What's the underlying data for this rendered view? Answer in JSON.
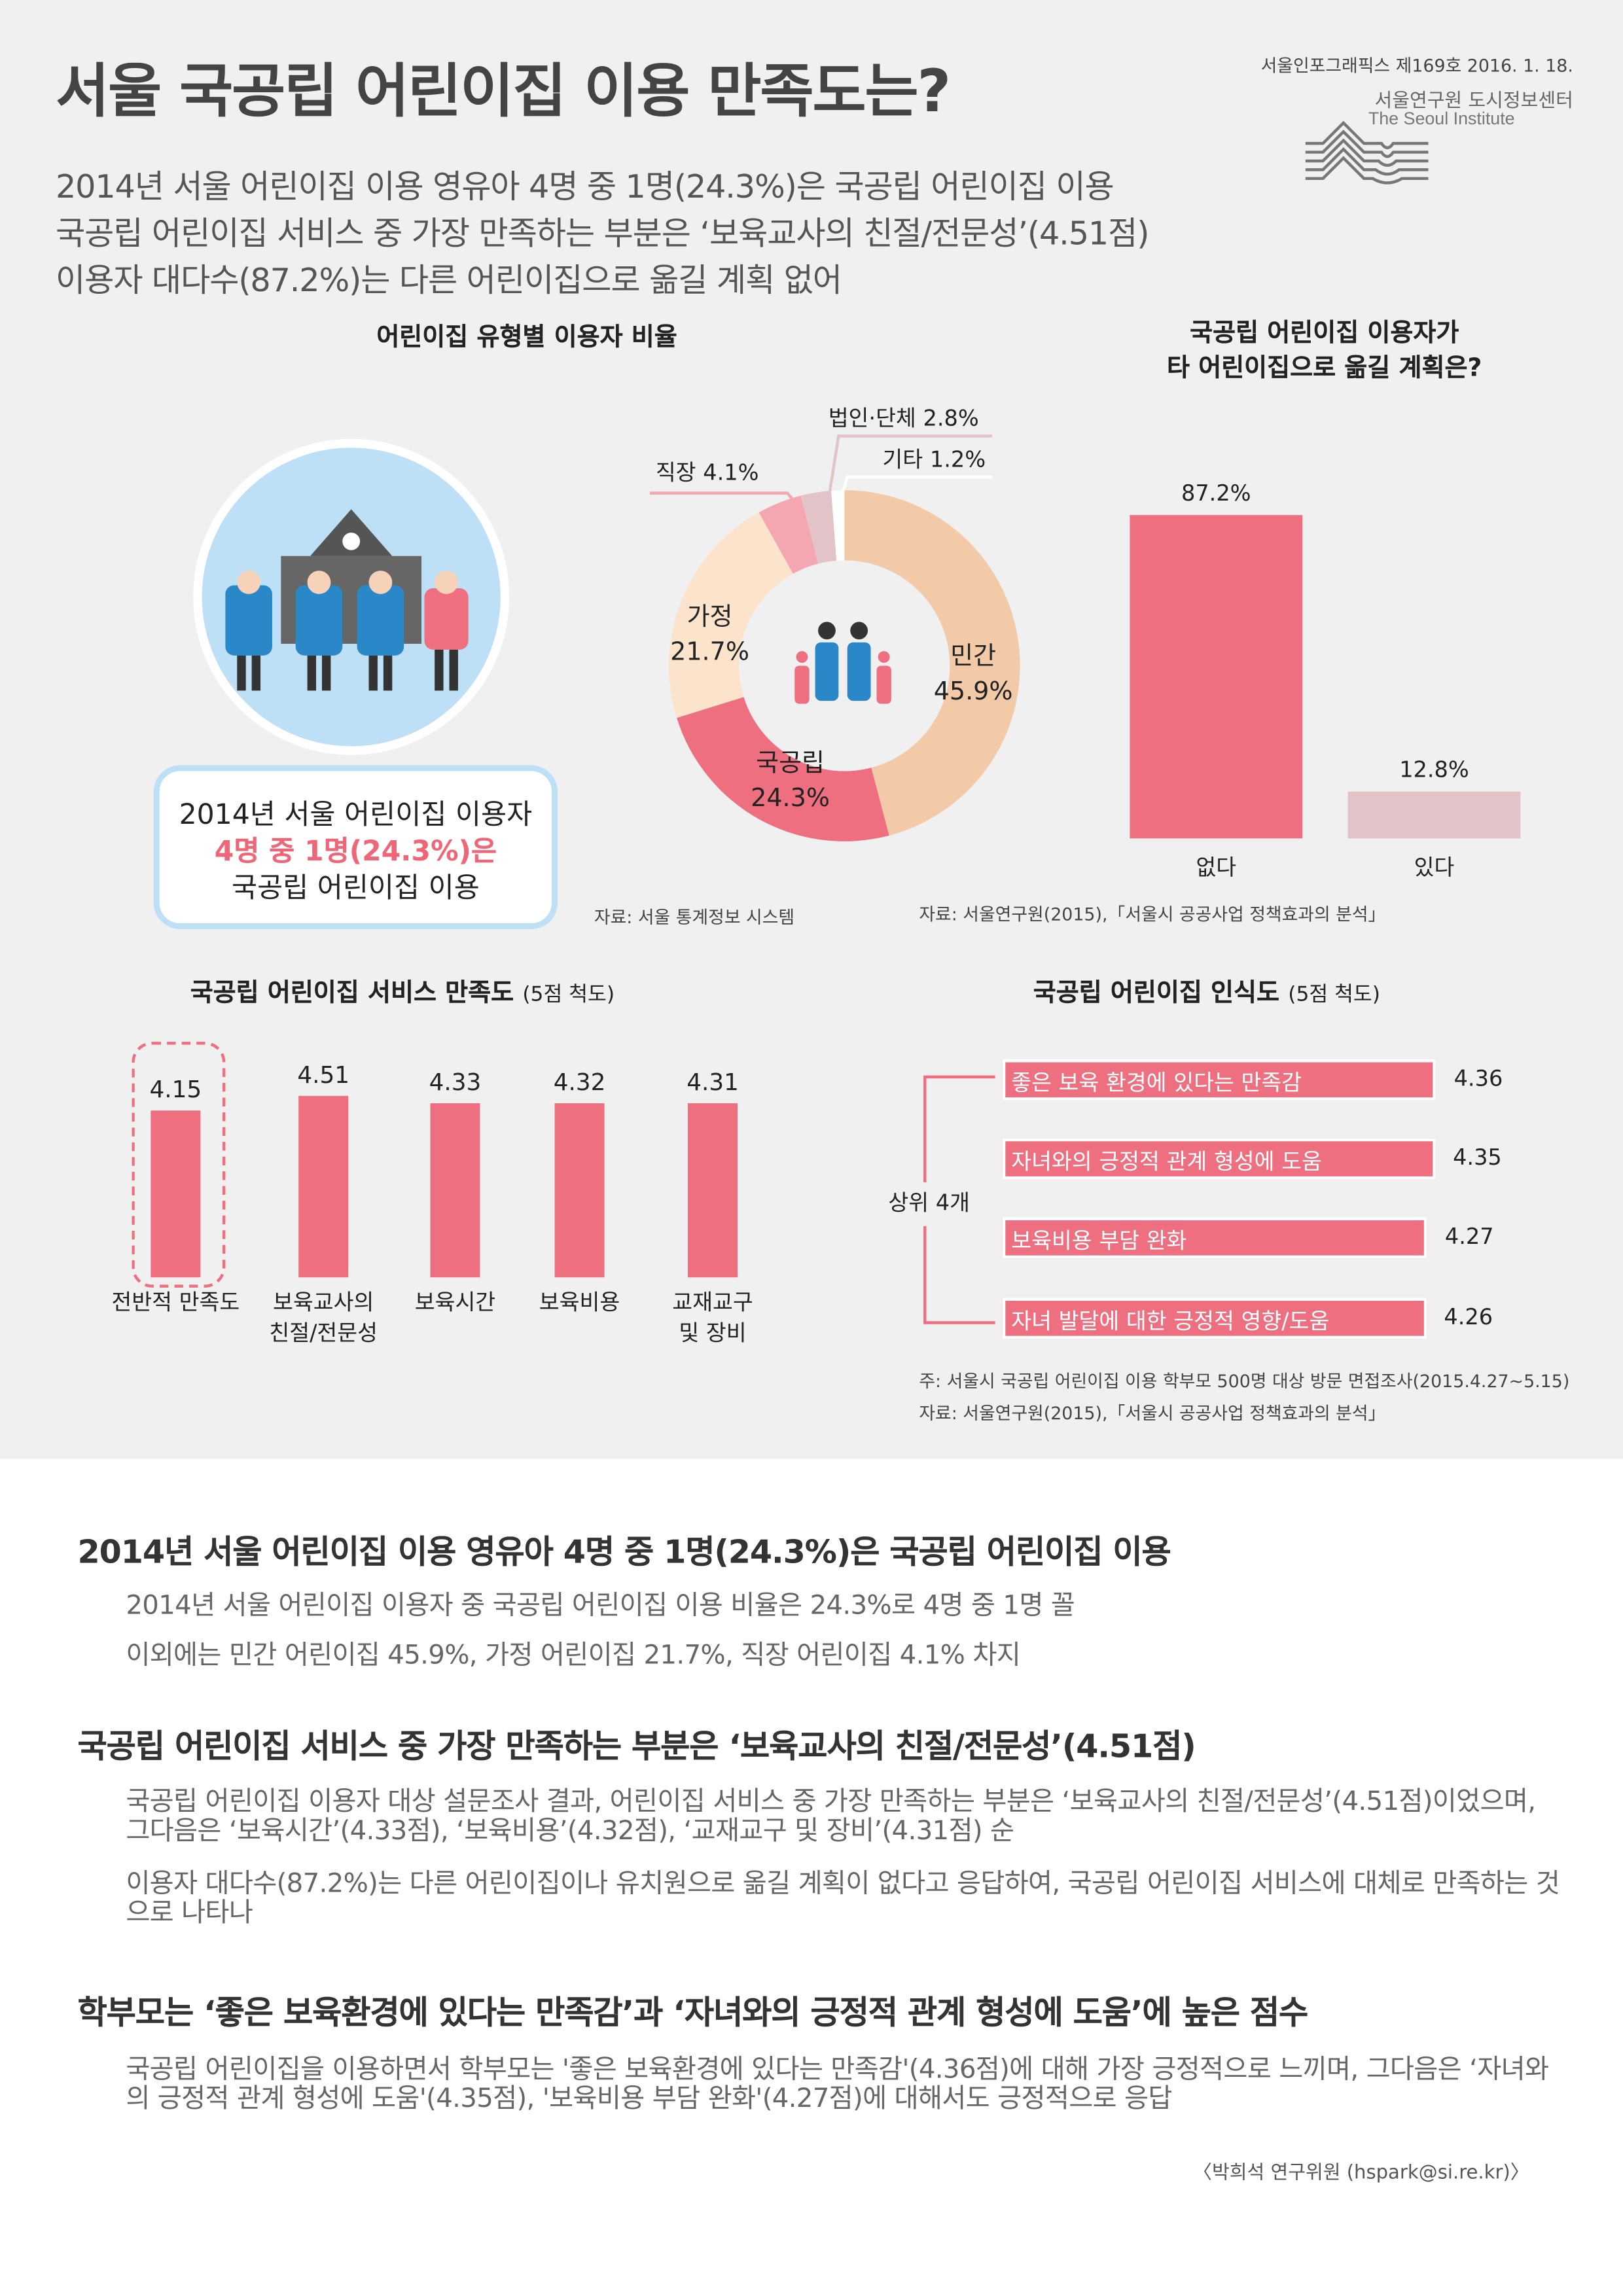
{
  "header": {
    "title": "서울 국공립 어린이집 이용 만족도는?",
    "subtitles": [
      "2014년 서울 어린이집 이용 영유아 4명 중 1명(24.3%)은 국공립 어린이집 이용",
      "국공립 어린이집 서비스 중 가장 만족하는 부분은 ‘보육교사의 친절/전문성’(4.51점)",
      "이용자 대다수(87.2%)는 다른 어린이집으로 옮길 계획 없어"
    ],
    "issue": "서울인포그래픽스 제169호 2016. 1. 18.",
    "org_kr": "서울연구원 도시정보센터",
    "org_en": "The Seoul Institute"
  },
  "callout": {
    "line1": "2014년 서울 어린이집 이용자",
    "line2": "4명 중 1명(24.3%)은",
    "line3": "국공립 어린이집 이용",
    "accent": "#ee6677"
  },
  "chart_data": [
    {
      "type": "pie",
      "title": "어린이집 유형별 이용자 비율",
      "donut": true,
      "slices": [
        {
          "label": "민간",
          "value": 45.9,
          "color": "#f2caa8"
        },
        {
          "label": "국공립",
          "value": 24.3,
          "color": "#ee7080"
        },
        {
          "label": "가정",
          "value": 21.7,
          "color": "#fbe3cc"
        },
        {
          "label": "직장",
          "value": 4.1,
          "color": "#f4a7b0"
        },
        {
          "label": "법인·단체",
          "value": 2.8,
          "color": "#e2c3c7"
        },
        {
          "label": "기타",
          "value": 1.2,
          "color": "#ffffff"
        }
      ],
      "source": "자료: 서울 통계정보 시스템"
    },
    {
      "type": "bar",
      "title_lines": [
        "국공립 어린이집 이용자가",
        "타 어린이집으로 옮길 계획은?"
      ],
      "categories": [
        "없다",
        "있다"
      ],
      "values": [
        87.2,
        12.8
      ],
      "value_labels": [
        "87.2%",
        "12.8%"
      ],
      "colors": [
        "#ee7080",
        "#e2c3c7"
      ],
      "source": "자료: 서울연구원(2015),「서울시 공공사업 정책효과의 분석」"
    },
    {
      "type": "bar",
      "title": "국공립 어린이집 서비스 만족도",
      "title_note": "(5점 척도)",
      "categories": [
        "전반적 만족도",
        "보육교사의 친절/전문성",
        "보육시간",
        "보육비용",
        "교재교구 및 장비"
      ],
      "category_lines": [
        [
          "전반적 만족도"
        ],
        [
          "보육교사의",
          "친절/전문성"
        ],
        [
          "보육시간"
        ],
        [
          "보육비용"
        ],
        [
          "교재교구",
          "및 장비"
        ]
      ],
      "values": [
        4.15,
        4.51,
        4.33,
        4.32,
        4.31
      ],
      "highlight": "전반적 만족도",
      "color": "#ee7080"
    },
    {
      "type": "bar",
      "orientation": "horizontal",
      "title": "국공립 어린이집 인식도",
      "title_note": "(5점 척도)",
      "group_label": "상위 4개",
      "categories": [
        "좋은 보육 환경에 있다는 만족감",
        "자녀와의 긍정적 관계 형성에 도움",
        "보육비용 부담 완화",
        "자녀 발달에 대한 긍정적 영향/도움"
      ],
      "values": [
        4.36,
        4.35,
        4.27,
        4.26
      ],
      "color": "#ee7080",
      "note": "주: 서울시 국공립 어린이집 이용 학부모 500명 대상 방문 면접조사(2015.4.27~5.15)",
      "source": "자료: 서울연구원(2015),「서울시 공공사업 정책효과의 분석」"
    }
  ],
  "sections": [
    {
      "heading": "2014년 서울 어린이집 이용 영유아 4명 중 1명(24.3%)은 국공립 어린이집 이용",
      "paras": [
        "2014년 서울 어린이집 이용자 중 국공립 어린이집 이용 비율은 24.3%로 4명 중 1명 꼴",
        "이외에는 민간 어린이집 45.9%, 가정 어린이집 21.7%, 직장 어린이집 4.1% 차지"
      ]
    },
    {
      "heading": "국공립 어린이집 서비스 중 가장 만족하는 부분은 ‘보육교사의 친절/전문성’(4.51점)",
      "paras": [
        "국공립 어린이집 이용자 대상 설문조사 결과, 어린이집 서비스 중 가장 만족하는 부분은 ‘보육교사의 친절/전문성’(4.51점)이었으며, 그다음은 ‘보육시간’(4.33점), ‘보육비용’(4.32점), ‘교재교구 및 장비’(4.31점) 순",
        "이용자 대다수(87.2%)는 다른 어린이집이나 유치원으로 옮길 계획이 없다고 응답하여, 국공립 어린이집 서비스에 대체로 만족하는 것으로 나타나"
      ]
    },
    {
      "heading": "학부모는 ‘좋은 보육환경에 있다는 만족감’과 ‘자녀와의 긍정적 관계 형성에 도움’에 높은 점수",
      "paras": [
        "국공립 어린이집을 이용하면서 학부모는 '좋은 보육환경에 있다는 만족감'(4.36점)에 대해 가장 긍정적으로 느끼며, 그다음은 ‘자녀와의 긍정적 관계 형성에 도움'(4.35점), '보육비용 부담 완화'(4.27점)에 대해서도 긍정적으로 응답"
      ]
    }
  ],
  "author": "〈박희석 연구위원 (hspark@si.re.kr)〉"
}
